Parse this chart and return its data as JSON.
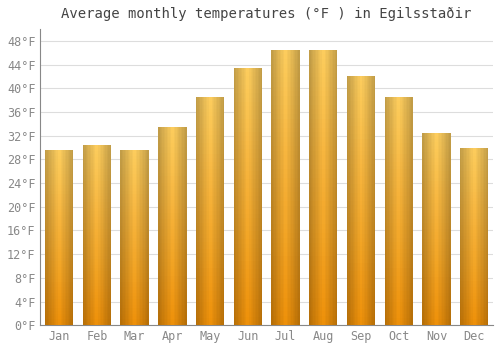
{
  "title": "Average monthly temperatures (°F ) in Egilsstaðir",
  "months": [
    "Jan",
    "Feb",
    "Mar",
    "Apr",
    "May",
    "Jun",
    "Jul",
    "Aug",
    "Sep",
    "Oct",
    "Nov",
    "Dec"
  ],
  "values": [
    29.5,
    30.5,
    29.5,
    33.5,
    38.5,
    43.5,
    46.5,
    46.5,
    42.0,
    38.5,
    32.5,
    30.0
  ],
  "bar_color_top": "#FFD060",
  "bar_color_bottom": "#F0920A",
  "background_color": "#FFFFFF",
  "grid_color": "#DDDDDD",
  "ylim": [
    0,
    50
  ],
  "yticks": [
    0,
    4,
    8,
    12,
    16,
    20,
    24,
    28,
    32,
    36,
    40,
    44,
    48
  ],
  "title_fontsize": 10,
  "tick_fontsize": 8.5,
  "bar_width": 0.75
}
